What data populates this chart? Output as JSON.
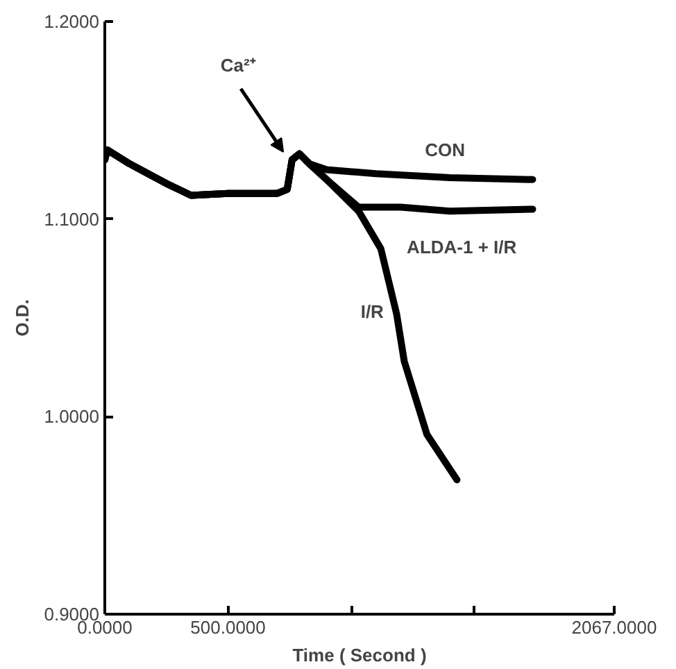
{
  "chart_data": {
    "type": "line",
    "xlabel": "Time ( Second )",
    "ylabel": "O.D.",
    "xlim": [
      0,
      2067
    ],
    "ylim": [
      0.9,
      1.2
    ],
    "xticks": [
      {
        "value": 0,
        "label": "0.0000"
      },
      {
        "value": 500,
        "label": "500.0000"
      },
      {
        "value": 1000,
        "label": null
      },
      {
        "value": 1500,
        "label": null
      },
      {
        "value": 2067,
        "label": "2067.0000"
      }
    ],
    "yticks": [
      {
        "value": 0.9,
        "label": "0.9000"
      },
      {
        "value": 1.0,
        "label": "1.0000"
      },
      {
        "value": 1.1,
        "label": "1.1000"
      },
      {
        "value": 1.2,
        "label": "1.2000"
      }
    ],
    "grid": false,
    "marker": "none",
    "line_style": "solid",
    "series": [
      {
        "name": "CON",
        "color": "#000000",
        "x": [
          0,
          10,
          100,
          250,
          350,
          500,
          700,
          740,
          760,
          790,
          830,
          900,
          1100,
          1400,
          1736
        ],
        "values": [
          1.13,
          1.135,
          1.128,
          1.118,
          1.112,
          1.113,
          1.113,
          1.115,
          1.13,
          1.133,
          1.128,
          1.125,
          1.123,
          1.121,
          1.12
        ]
      },
      {
        "name": "ALDA-1 + I/R",
        "color": "#000000",
        "x": [
          0,
          10,
          100,
          250,
          350,
          500,
          700,
          740,
          760,
          790,
          830,
          900,
          1030,
          1200,
          1400,
          1736
        ],
        "values": [
          1.13,
          1.135,
          1.128,
          1.118,
          1.112,
          1.113,
          1.113,
          1.115,
          1.13,
          1.133,
          1.128,
          1.12,
          1.106,
          1.106,
          1.104,
          1.105
        ]
      },
      {
        "name": "I/R",
        "color": "#000000",
        "x": [
          0,
          10,
          100,
          250,
          350,
          500,
          700,
          740,
          760,
          790,
          830,
          900,
          1030,
          1120,
          1184,
          1215,
          1307,
          1429
        ],
        "values": [
          1.13,
          1.135,
          1.128,
          1.118,
          1.112,
          1.113,
          1.113,
          1.115,
          1.13,
          1.133,
          1.128,
          1.12,
          1.104,
          1.085,
          1.052,
          1.028,
          0.991,
          0.968
        ]
      }
    ],
    "annotations": [
      "Ca²⁺"
    ]
  }
}
